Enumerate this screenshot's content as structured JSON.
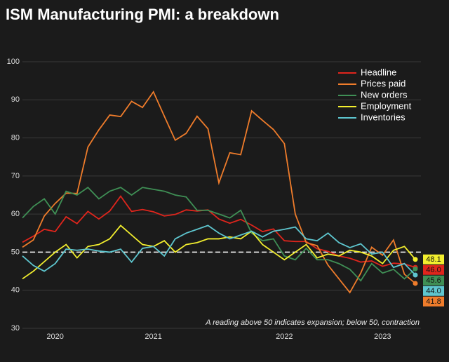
{
  "chart_data": {
    "type": "line",
    "title": "ISM Manufacturing PMI: a breakdown",
    "annotation": "A reading above 50 indicates expansion; below 50, contraction",
    "categories": [
      null,
      null,
      null,
      "2020",
      null,
      null,
      null,
      null,
      null,
      null,
      null,
      null,
      "2021",
      null,
      null,
      null,
      null,
      null,
      null,
      null,
      null,
      null,
      null,
      null,
      "2022",
      null,
      null,
      null,
      null,
      null,
      null,
      null,
      null,
      "2023",
      null,
      null,
      null
    ],
    "ylim": [
      30,
      100
    ],
    "yticks": [
      30,
      40,
      50,
      60,
      70,
      80,
      90,
      100
    ],
    "grid": true,
    "reference_line": 50,
    "legend": "top-right",
    "series": [
      {
        "name": "Headline",
        "color": "#e0251c",
        "end_label": "46.0",
        "values": [
          52.6,
          54.2,
          56,
          55.4,
          59.3,
          57.5,
          60.7,
          58.7,
          60.8,
          64.7,
          60.7,
          61.2,
          60.6,
          59.5,
          59.9,
          61.1,
          60.8,
          61.1,
          58.7,
          57.6,
          58.6,
          57.1,
          55.4,
          56.1,
          53,
          52.8,
          52.8,
          50.9,
          50.2,
          49,
          48.4,
          47.4,
          47.7,
          46.3,
          47.1,
          46.9,
          46
        ]
      },
      {
        "name": "Prices paid",
        "color": "#ef7c2b",
        "end_label": "41.8",
        "values": [
          51.3,
          53.2,
          59.5,
          62.8,
          65.5,
          65.4,
          77.6,
          82.1,
          86,
          85.6,
          89.6,
          88,
          92.1,
          85.7,
          79.4,
          81.2,
          85.7,
          82.4,
          68.2,
          76.1,
          75.6,
          87.1,
          84.6,
          82.2,
          78.5,
          60,
          52.5,
          51.7,
          46.6,
          43,
          39.4,
          44.5,
          51.3,
          49.2,
          53.2,
          44.2,
          41.8
        ]
      },
      {
        "name": "New orders",
        "color": "#3f8f55",
        "end_label": "45.6",
        "values": [
          59,
          62,
          64,
          60,
          66,
          65,
          67,
          64,
          66,
          67,
          65,
          67,
          66.5,
          66,
          65,
          64.5,
          61,
          61,
          60,
          59,
          61,
          55,
          53,
          53.5,
          49,
          48,
          51,
          48,
          48,
          47,
          45.5,
          42.5,
          47,
          44.5,
          45.5,
          43,
          45.6
        ]
      },
      {
        "name": "Employment",
        "color": "#f3ef2e",
        "end_label": "48.1",
        "values": [
          43,
          45,
          47.5,
          50,
          52,
          48.5,
          51.5,
          52,
          53.5,
          57,
          54.5,
          52,
          51.5,
          53,
          50,
          52,
          52.5,
          53.5,
          53.5,
          54,
          53.5,
          55.5,
          52,
          50,
          48,
          50,
          52,
          48.5,
          49.5,
          49,
          50.5,
          50,
          49,
          47,
          50.5,
          51.5,
          48.1
        ]
      },
      {
        "name": "Inventories",
        "color": "#5ec6cf",
        "end_label": "44.0",
        "values": [
          49,
          46.5,
          45,
          47,
          50.8,
          50.5,
          50.8,
          50.3,
          50,
          50.8,
          47.4,
          51,
          51.5,
          49,
          53.5,
          55,
          56,
          57,
          55,
          53.5,
          54.5,
          55.5,
          54,
          55.5,
          56,
          56.6,
          53.5,
          53,
          55,
          52.5,
          51.2,
          52.2,
          49.5,
          50,
          46,
          47,
          44
        ]
      }
    ]
  }
}
